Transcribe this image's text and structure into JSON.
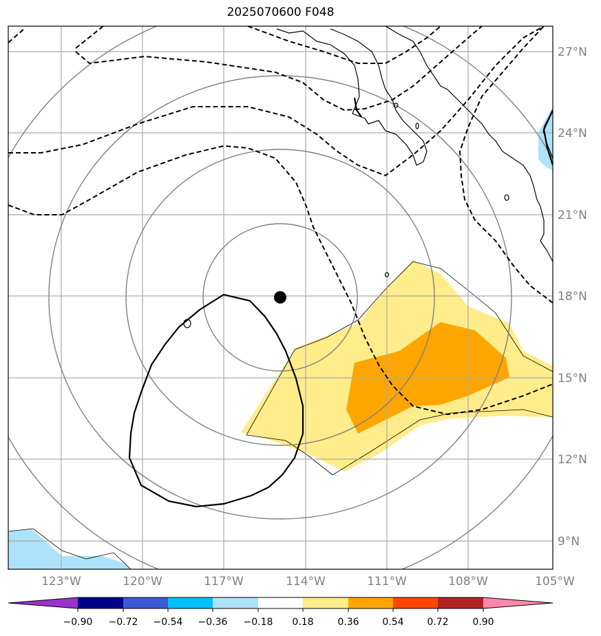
{
  "title": "2025070600 F048",
  "map": {
    "lat_labels": [
      "27°N",
      "24°N",
      "21°N",
      "18°N",
      "15°N",
      "12°N",
      "9°N"
    ],
    "lon_labels": [
      "123°W",
      "120°W",
      "117°W",
      "114°W",
      "111°W",
      "108°W",
      "105°W"
    ],
    "extent": {
      "lon_min": -125,
      "lon_max": -105,
      "lat_min": 8,
      "lat_max": 28
    },
    "storm_center": {
      "lat": 18.0,
      "lon": -115.0
    },
    "range_ring_color": "#808080",
    "contour_color": "#000000"
  },
  "colorbar": {
    "labels": [
      "−0.90",
      "−0.72",
      "−0.54",
      "−0.36",
      "−0.18",
      "0.18",
      "0.36",
      "0.54",
      "0.72",
      "0.90"
    ],
    "colors": [
      "#9933cc",
      "#000088",
      "#3b5bd6",
      "#00bfff",
      "#aee2fb",
      "#ffffff",
      "#ffec8b",
      "#ffa500",
      "#ff4500",
      "#b22222",
      "#ff88aa"
    ]
  }
}
